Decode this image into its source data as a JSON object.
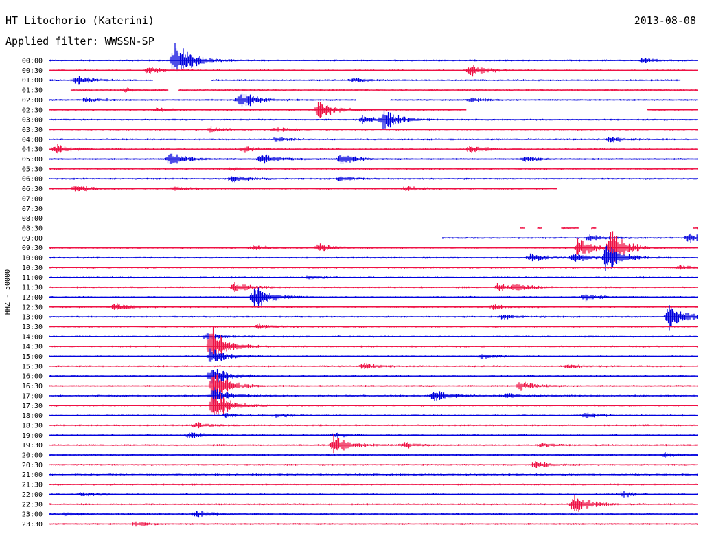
{
  "header": {
    "station": "HT Litochorio (Katerini)",
    "filter": "Applied filter: WWSSN-SP",
    "date": "2013-08-08"
  },
  "chart_data": {
    "type": "line",
    "title": "HT Litochorio (Katerini)",
    "subtitle": "Applied filter: WWSSN-SP",
    "date": "2013-08-08",
    "ylabel": "HHZ - 50000",
    "colors": {
      "blue": "#0000dd",
      "red": "#ee1144"
    },
    "trace_color_order": [
      "blue",
      "red"
    ],
    "x_range_minutes": [
      0,
      30
    ],
    "rows": [
      {
        "label": "00:00",
        "segments": [
          [
            0,
            30
          ]
        ],
        "events": [
          {
            "t": 5.8,
            "amp": 3.6
          },
          {
            "t": 27.5,
            "amp": 0.3
          }
        ]
      },
      {
        "label": "00:30",
        "segments": [
          [
            0,
            30
          ]
        ],
        "events": [
          {
            "t": 4.6,
            "amp": 0.5
          },
          {
            "t": 19.5,
            "amp": 1.0
          }
        ]
      },
      {
        "label": "01:00",
        "segments": [
          [
            0,
            4.8
          ],
          [
            7.5,
            29.2
          ]
        ],
        "events": [
          {
            "t": 1.2,
            "amp": 0.7
          },
          {
            "t": 14,
            "amp": 0.3
          }
        ]
      },
      {
        "label": "01:30",
        "segments": [
          [
            1,
            5.5
          ],
          [
            6,
            30
          ]
        ],
        "events": [
          {
            "t": 3.5,
            "amp": 0.3
          }
        ]
      },
      {
        "label": "02:00",
        "segments": [
          [
            0,
            14.2
          ],
          [
            15.8,
            30
          ]
        ],
        "events": [
          {
            "t": 1.7,
            "amp": 0.4
          },
          {
            "t": 8.8,
            "amp": 1.6
          },
          {
            "t": 19.5,
            "amp": 0.3
          }
        ]
      },
      {
        "label": "02:30",
        "segments": [
          [
            0,
            19.3
          ],
          [
            27.7,
            30
          ]
        ],
        "events": [
          {
            "t": 12.5,
            "amp": 1.5
          },
          {
            "t": 5,
            "amp": 0.3
          }
        ]
      },
      {
        "label": "03:00",
        "segments": [
          [
            0,
            30
          ]
        ],
        "events": [
          {
            "t": 14.5,
            "amp": 0.6
          },
          {
            "t": 15.5,
            "amp": 1.4
          }
        ]
      },
      {
        "label": "03:30",
        "segments": [
          [
            0,
            30
          ]
        ],
        "events": [
          {
            "t": 7.5,
            "amp": 0.4
          },
          {
            "t": 10.5,
            "amp": 0.3
          }
        ]
      },
      {
        "label": "04:00",
        "segments": [
          [
            0,
            30
          ]
        ],
        "events": [
          {
            "t": 10.5,
            "amp": 0.3
          },
          {
            "t": 26,
            "amp": 0.5
          }
        ]
      },
      {
        "label": "04:30",
        "segments": [
          [
            0,
            30
          ]
        ],
        "events": [
          {
            "t": 0.3,
            "amp": 0.9
          },
          {
            "t": 9,
            "amp": 0.4
          },
          {
            "t": 19.5,
            "amp": 0.6
          }
        ]
      },
      {
        "label": "05:00",
        "segments": [
          [
            0,
            30
          ]
        ],
        "events": [
          {
            "t": 5.6,
            "amp": 1.0
          },
          {
            "t": 9.8,
            "amp": 0.9
          },
          {
            "t": 13.5,
            "amp": 1.0
          },
          {
            "t": 22,
            "amp": 0.4
          }
        ]
      },
      {
        "label": "05:30",
        "segments": [
          [
            0,
            30
          ]
        ],
        "events": [
          {
            "t": 8.5,
            "amp": 0.3
          }
        ]
      },
      {
        "label": "06:00",
        "segments": [
          [
            0,
            30
          ]
        ],
        "events": [
          {
            "t": 8.5,
            "amp": 0.6
          },
          {
            "t": 13.5,
            "amp": 0.3
          }
        ]
      },
      {
        "label": "06:30",
        "segments": [
          [
            0,
            23.5
          ]
        ],
        "events": [
          {
            "t": 1.2,
            "amp": 0.6
          },
          {
            "t": 5.8,
            "amp": 0.3
          },
          {
            "t": 16.5,
            "amp": 0.4
          }
        ]
      },
      {
        "label": "07:00",
        "segments": [],
        "events": []
      },
      {
        "label": "07:30",
        "segments": [],
        "events": []
      },
      {
        "label": "08:00",
        "segments": [],
        "events": []
      },
      {
        "label": "08:30",
        "segments": [
          [
            21.8,
            22.0
          ],
          [
            22.6,
            22.8
          ],
          [
            23.7,
            24.5
          ],
          [
            25.1,
            25.3
          ],
          [
            29.8,
            30
          ]
        ],
        "events": []
      },
      {
        "label": "09:00",
        "segments": [
          [
            18.2,
            30
          ]
        ],
        "events": [
          {
            "t": 25,
            "amp": 0.5
          },
          {
            "t": 29.6,
            "amp": 0.8
          }
        ]
      },
      {
        "label": "09:30",
        "segments": [
          [
            0,
            30
          ]
        ],
        "events": [
          {
            "t": 24.5,
            "amp": 1.6
          },
          {
            "t": 26,
            "amp": 3.0
          },
          {
            "t": 12.5,
            "amp": 0.6
          },
          {
            "t": 9.5,
            "amp": 0.4
          }
        ]
      },
      {
        "label": "10:00",
        "segments": [
          [
            0,
            30
          ]
        ],
        "events": [
          {
            "t": 22.3,
            "amp": 0.6
          },
          {
            "t": 25.8,
            "amp": 2.5
          },
          {
            "t": 24.3,
            "amp": 0.8
          }
        ]
      },
      {
        "label": "10:30",
        "segments": [
          [
            0,
            30
          ]
        ],
        "events": [
          {
            "t": 29.2,
            "amp": 0.3
          }
        ]
      },
      {
        "label": "11:00",
        "segments": [
          [
            0,
            30
          ]
        ],
        "events": [
          {
            "t": 12,
            "amp": 0.3
          }
        ]
      },
      {
        "label": "11:30",
        "segments": [
          [
            0,
            30
          ]
        ],
        "events": [
          {
            "t": 8.6,
            "amp": 0.8
          },
          {
            "t": 20.8,
            "amp": 0.6
          },
          {
            "t": 21.6,
            "amp": 0.4
          }
        ]
      },
      {
        "label": "12:00",
        "segments": [
          [
            0,
            30
          ]
        ],
        "events": [
          {
            "t": 9.5,
            "amp": 1.8
          },
          {
            "t": 24.8,
            "amp": 0.5
          }
        ]
      },
      {
        "label": "12:30",
        "segments": [
          [
            0,
            30
          ]
        ],
        "events": [
          {
            "t": 3,
            "amp": 0.6
          },
          {
            "t": 20.5,
            "amp": 0.3
          }
        ]
      },
      {
        "label": "13:00",
        "segments": [
          [
            0,
            30
          ]
        ],
        "events": [
          {
            "t": 28.7,
            "amp": 2.0
          },
          {
            "t": 21,
            "amp": 0.3
          }
        ]
      },
      {
        "label": "13:30",
        "segments": [
          [
            0,
            30
          ]
        ],
        "events": [
          {
            "t": 9.7,
            "amp": 0.4
          }
        ]
      },
      {
        "label": "14:00",
        "segments": [
          [
            0,
            30
          ]
        ],
        "events": [
          {
            "t": 7.3,
            "amp": 0.5
          }
        ]
      },
      {
        "label": "14:30",
        "segments": [
          [
            0,
            30
          ]
        ],
        "events": [
          {
            "t": 7.5,
            "amp": 3.0
          }
        ]
      },
      {
        "label": "15:00",
        "segments": [
          [
            0,
            30
          ]
        ],
        "events": [
          {
            "t": 7.5,
            "amp": 1.4
          },
          {
            "t": 20,
            "amp": 0.4
          }
        ]
      },
      {
        "label": "15:30",
        "segments": [
          [
            0,
            30
          ]
        ],
        "events": [
          {
            "t": 14.5,
            "amp": 0.5
          },
          {
            "t": 24,
            "amp": 0.3
          }
        ]
      },
      {
        "label": "16:00",
        "segments": [
          [
            0,
            30
          ]
        ],
        "events": [
          {
            "t": 7.5,
            "amp": 1.6
          }
        ]
      },
      {
        "label": "16:30",
        "segments": [
          [
            0,
            30
          ]
        ],
        "events": [
          {
            "t": 7.6,
            "amp": 2.4
          },
          {
            "t": 21.8,
            "amp": 0.7
          }
        ]
      },
      {
        "label": "17:00",
        "segments": [
          [
            0,
            30
          ]
        ],
        "events": [
          {
            "t": 7.6,
            "amp": 1.4
          },
          {
            "t": 17.8,
            "amp": 1.0
          },
          {
            "t": 21.2,
            "amp": 0.3
          }
        ]
      },
      {
        "label": "17:30",
        "segments": [
          [
            0,
            30
          ]
        ],
        "events": [
          {
            "t": 7.6,
            "amp": 2.5
          }
        ]
      },
      {
        "label": "18:00",
        "segments": [
          [
            0,
            30
          ]
        ],
        "events": [
          {
            "t": 8.2,
            "amp": 0.4
          },
          {
            "t": 24.8,
            "amp": 0.4
          },
          {
            "t": 10.5,
            "amp": 0.3
          }
        ]
      },
      {
        "label": "18:30",
        "segments": [
          [
            0,
            30
          ]
        ],
        "events": [
          {
            "t": 6.8,
            "amp": 0.4
          }
        ]
      },
      {
        "label": "19:00",
        "segments": [
          [
            0,
            30
          ]
        ],
        "events": [
          {
            "t": 6.5,
            "amp": 0.6
          },
          {
            "t": 13.2,
            "amp": 0.4
          }
        ]
      },
      {
        "label": "19:30",
        "segments": [
          [
            0,
            30
          ]
        ],
        "events": [
          {
            "t": 13.2,
            "amp": 1.6
          },
          {
            "t": 16.4,
            "amp": 0.5
          },
          {
            "t": 22.8,
            "amp": 0.3
          }
        ]
      },
      {
        "label": "20:00",
        "segments": [
          [
            0,
            30
          ]
        ],
        "events": [
          {
            "t": 28.5,
            "amp": 0.3
          }
        ]
      },
      {
        "label": "20:30",
        "segments": [
          [
            0,
            30
          ]
        ],
        "events": [
          {
            "t": 22.5,
            "amp": 0.5
          }
        ]
      },
      {
        "label": "21:00",
        "segments": [
          [
            0,
            30
          ]
        ],
        "events": []
      },
      {
        "label": "21:30",
        "segments": [
          [
            0,
            30
          ]
        ],
        "events": []
      },
      {
        "label": "22:00",
        "segments": [
          [
            0,
            30
          ]
        ],
        "events": [
          {
            "t": 26.5,
            "amp": 0.4
          },
          {
            "t": 1.5,
            "amp": 0.3
          }
        ]
      },
      {
        "label": "22:30",
        "segments": [
          [
            0,
            30
          ]
        ],
        "events": [
          {
            "t": 24.3,
            "amp": 1.6
          }
        ]
      },
      {
        "label": "23:00",
        "segments": [
          [
            0,
            30
          ]
        ],
        "events": [
          {
            "t": 6.8,
            "amp": 0.6
          },
          {
            "t": 0.8,
            "amp": 0.3
          }
        ]
      },
      {
        "label": "23:30",
        "segments": [
          [
            0,
            30
          ]
        ],
        "events": [
          {
            "t": 4,
            "amp": 0.3
          }
        ]
      }
    ]
  }
}
